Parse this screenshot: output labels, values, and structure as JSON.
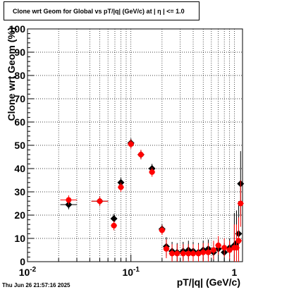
{
  "chart_data": {
    "type": "scatter",
    "title": "Clone wrt Geom for Global vs pT/|q| (GeV/c) at |   η   | <= 1.0",
    "xlabel": "pT/|q| (GeV/c)",
    "ylabel": "Clone wrt Geom (%)",
    "x_scale": "log",
    "xlim": [
      0.01,
      1.2
    ],
    "ylim": [
      0,
      100
    ],
    "grid": true,
    "x_tick_labels": [
      "10^-2",
      "10^-1",
      "1"
    ],
    "y_tick_labels": [
      "0",
      "10",
      "20",
      "30",
      "40",
      "50",
      "60",
      "70",
      "80",
      "90",
      "100"
    ],
    "series": [
      {
        "color": "#000000",
        "marker": "diamond",
        "x": [
          0.025,
          0.05,
          0.0685,
          0.08,
          0.1,
          0.125,
          0.16,
          0.2,
          0.22,
          0.25,
          0.28,
          0.32,
          0.36,
          0.4,
          0.45,
          0.5,
          0.56,
          0.63,
          0.7,
          0.8,
          0.9,
          1.0,
          1.05,
          1.1,
          1.15
        ],
        "y": [
          24.5,
          26,
          18.5,
          34,
          51,
          46,
          40,
          14,
          6.5,
          4.5,
          4,
          4.5,
          5,
          4.5,
          4,
          5,
          5.5,
          4,
          5.5,
          4,
          6,
          7,
          8,
          12,
          33.5
        ]
      },
      {
        "color": "#ff0000",
        "marker": "circle",
        "x": [
          0.025,
          0.05,
          0.0685,
          0.08,
          0.1,
          0.125,
          0.16,
          0.2,
          0.22,
          0.25,
          0.28,
          0.32,
          0.36,
          0.4,
          0.45,
          0.5,
          0.56,
          0.63,
          0.7,
          0.8,
          0.9,
          1.0,
          1.05,
          1.1,
          1.15
        ],
        "y": [
          26.5,
          26,
          15.5,
          32,
          50.5,
          46,
          38.5,
          13.5,
          5.5,
          3.5,
          3.5,
          3.5,
          3.5,
          3.5,
          3.5,
          4,
          4,
          5,
          7,
          6,
          5,
          6,
          6,
          9,
          25
        ]
      }
    ]
  },
  "footer": {
    "timestamp": "Thu Jun 26 21:57:16 2025"
  }
}
